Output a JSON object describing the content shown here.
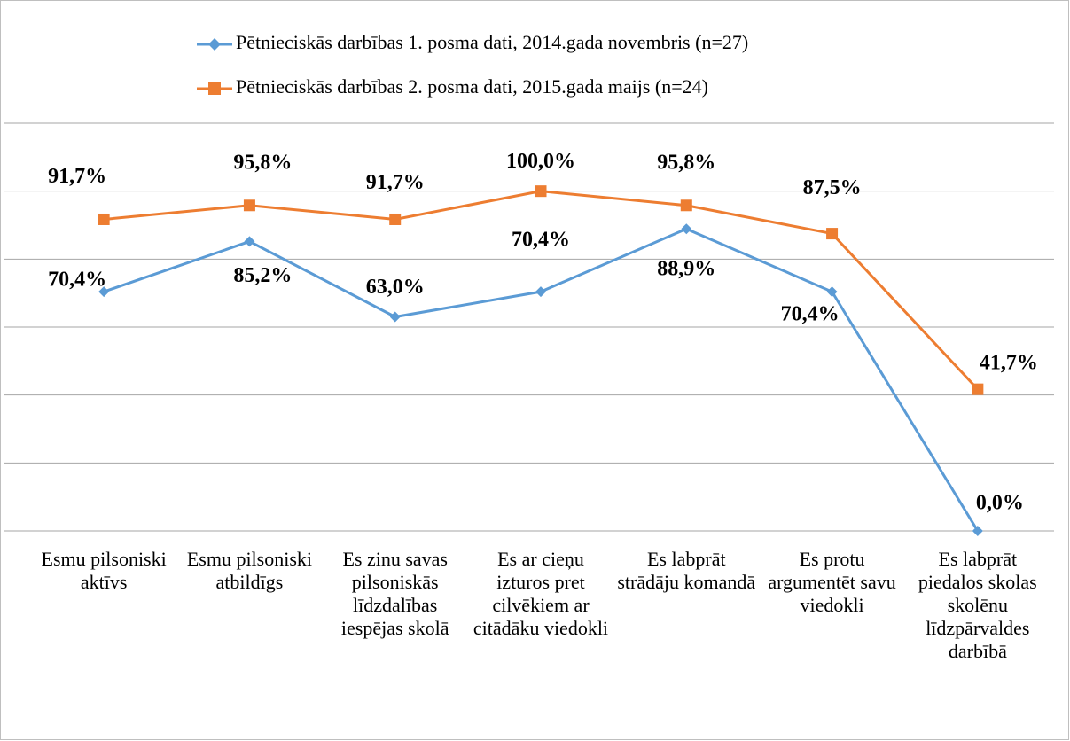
{
  "chart_data": {
    "type": "line",
    "categories": [
      "Esmu pilsoniski aktīvs",
      "Esmu pilsoniski atbildīgs",
      "Es zinu savas pilsoniskās līdzdalības iespējas skolā",
      "Es ar cieņu izturos pret cilvēkiem ar citādāku viedokli",
      "Es labprāt strādāju komandā",
      "Es protu argumentēt savu viedokli",
      "Es labprāt piedalos skolas skolēnu līdzpārvaldes darbībā"
    ],
    "series": [
      {
        "name": "Pētnieciskās darbības 1. posma dati, 2014.gada novembris (n=27)",
        "color": "#5b9bd5",
        "marker": "diamond",
        "values": [
          70.4,
          85.2,
          63.0,
          70.4,
          88.9,
          70.4,
          0.0
        ],
        "value_labels": [
          "70,4%",
          "85,2%",
          "63,0%",
          "70,4%",
          "88,9%",
          "70,4%",
          "0,0%"
        ]
      },
      {
        "name": "Pētnieciskās darbības 2. posma dati, 2015.gada maijs (n=24)",
        "color": "#ed7d31",
        "marker": "square",
        "values": [
          91.7,
          95.8,
          91.7,
          100.0,
          95.8,
          87.5,
          41.7
        ],
        "value_labels": [
          "91,7%",
          "95,8%",
          "91,7%",
          "100,0%",
          "95,8%",
          "87,5%",
          "41,7%"
        ]
      }
    ],
    "ylim": [
      0,
      120
    ],
    "yticks": [
      0,
      20,
      40,
      60,
      80,
      100,
      120
    ],
    "grid": true,
    "legend": "top"
  }
}
